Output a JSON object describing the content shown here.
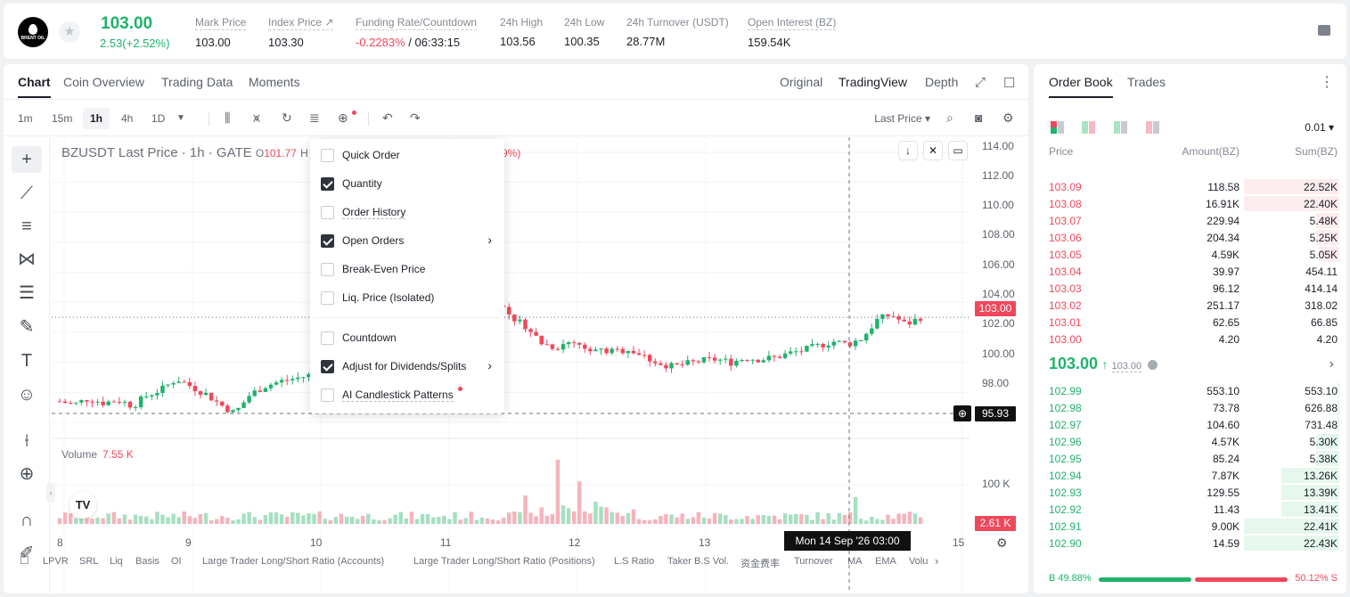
{
  "header": {
    "logo_text": "BRENT OIL",
    "price": "103.00",
    "change": "2.53(+2.52%)",
    "stats": [
      {
        "label": "Mark Price",
        "value": "103.00"
      },
      {
        "label": "Index Price ↗",
        "value": "103.30"
      },
      {
        "label": "Funding Rate/Countdown",
        "value_neg": "-0.2283%",
        "value": " / 06:33:15"
      },
      {
        "label": "24h High",
        "value": "103.56"
      },
      {
        "label": "24h Low",
        "value": "100.35"
      },
      {
        "label": "24h Turnover (USDT)",
        "value": "28.77M"
      },
      {
        "label": "Open Interest (BZ)",
        "value": "159.54K"
      }
    ]
  },
  "chart_tabs": [
    "Chart",
    "Coin Overview",
    "Trading Data",
    "Moments"
  ],
  "view_tabs": [
    "Original",
    "TradingView",
    "Depth"
  ],
  "timeframes": [
    "1m",
    "15m",
    "1h",
    "4h",
    "1D"
  ],
  "last_price_select": "Last Price",
  "chart": {
    "title": "BZUSDT Last Price · 1h · GATE",
    "o_label": "O",
    "o_value": "101.77",
    "h_label": "H",
    "pct_fragment": "9%)",
    "volume_label": "Volume",
    "volume_value": "7.55 K",
    "y_labels": [
      "114.00",
      "112.00",
      "110.00",
      "108.00",
      "106.00",
      "104.00",
      "102.00",
      "100.00",
      "98.00"
    ],
    "vol_axis_label": "100 K",
    "last_badge": "103.00",
    "cross_badge": "95.93",
    "vol_badge": "2.61 K",
    "x_labels": [
      "8",
      "9",
      "10",
      "11",
      "12",
      "13",
      "15"
    ],
    "x_badge": "Mon 14 Sep '26   03:00"
  },
  "chart_data": {
    "type": "candlestick",
    "y_range": [
      96,
      115
    ],
    "x_labels": [
      "8",
      "9",
      "10",
      "11",
      "12",
      "13",
      "14",
      "15"
    ],
    "close_series": [
      97.4,
      97.2,
      97.6,
      97.3,
      97.5,
      97.1,
      97.8,
      98.2,
      98.9,
      98.4,
      97.9,
      97.2,
      96.6,
      97.8,
      98.4,
      98.7,
      98.9,
      99.1,
      99.6,
      99.4,
      99.9,
      100.1,
      100.4,
      100.2,
      100.6,
      101.5,
      103.2,
      104.8,
      104.3,
      105.8,
      104.1,
      103.0,
      102.4,
      101.3,
      101.0,
      101.4,
      101.1,
      100.8,
      100.7,
      100.9,
      100.4,
      100.0,
      99.7,
      99.9,
      100.1,
      100.2,
      100.0,
      100.3,
      100.2,
      100.3,
      100.6,
      100.8,
      101.1,
      101.4,
      101.2,
      101.6,
      102.8,
      103.2,
      102.5,
      103.0
    ],
    "volume_peak_k": 100
  },
  "menu": {
    "items": [
      {
        "label": "Quick Order",
        "checked": false,
        "arrow": false
      },
      {
        "label": "Quantity",
        "checked": true,
        "arrow": false
      },
      {
        "label": "Order History",
        "checked": false,
        "arrow": false
      },
      {
        "label": "Open Orders",
        "checked": true,
        "arrow": true
      },
      {
        "label": "Break-Even Price",
        "checked": false,
        "arrow": false
      },
      {
        "label": "Liq. Price (Isolated)",
        "checked": false,
        "arrow": false
      },
      {
        "label": "Countdown",
        "checked": false,
        "arrow": false
      },
      {
        "label": "Adjust for Dividends/Splits",
        "checked": true,
        "arrow": true
      },
      {
        "label": "AI Candlestick Patterns",
        "checked": false,
        "arrow": false
      }
    ]
  },
  "indicators": [
    "LPVR",
    "SRL",
    "Liq",
    "Basis",
    "OI",
    "Large Trader Long/Short Ratio (Accounts)",
    "Large Trader Long/Short Ratio (Positions)",
    "L.S Ratio",
    "Taker B.S Vol.",
    "资金费率",
    "Turnover",
    "MA",
    "EMA",
    "Volu"
  ],
  "orderbook": {
    "tabs": [
      "Order Book",
      "Trades"
    ],
    "precision": "0.01",
    "headers": {
      "price": "Price",
      "amount": "Amount(BZ)",
      "sum": "Sum(BZ)"
    },
    "asks": [
      {
        "price": "103.09",
        "amount": "118.58",
        "sum": "22.52K",
        "depth": 0.33
      },
      {
        "price": "103.08",
        "amount": "16.91K",
        "sum": "22.40K",
        "depth": 0.33
      },
      {
        "price": "103.07",
        "amount": "229.94",
        "sum": "5.48K",
        "depth": 0.08
      },
      {
        "price": "103.06",
        "amount": "204.34",
        "sum": "5.25K",
        "depth": 0.08
      },
      {
        "price": "103.05",
        "amount": "4.59K",
        "sum": "5.05K",
        "depth": 0.07
      },
      {
        "price": "103.04",
        "amount": "39.97",
        "sum": "454.11",
        "depth": 0
      },
      {
        "price": "103.03",
        "amount": "96.12",
        "sum": "414.14",
        "depth": 0
      },
      {
        "price": "103.02",
        "amount": "251.17",
        "sum": "318.02",
        "depth": 0
      },
      {
        "price": "103.01",
        "amount": "62.65",
        "sum": "66.85",
        "depth": 0
      },
      {
        "price": "103.00",
        "amount": "4.20",
        "sum": "4.20",
        "depth": 0
      }
    ],
    "mid_price": "103.00",
    "mid_arrow": "↑",
    "mid_mark": "103.00",
    "bids": [
      {
        "price": "102.99",
        "amount": "553.10",
        "sum": "553.10",
        "depth": 0.01
      },
      {
        "price": "102.98",
        "amount": "73.78",
        "sum": "626.88",
        "depth": 0.01
      },
      {
        "price": "102.97",
        "amount": "104.60",
        "sum": "731.48",
        "depth": 0.01
      },
      {
        "price": "102.96",
        "amount": "4.57K",
        "sum": "5.30K",
        "depth": 0.08
      },
      {
        "price": "102.95",
        "amount": "85.24",
        "sum": "5.38K",
        "depth": 0.08
      },
      {
        "price": "102.94",
        "amount": "7.87K",
        "sum": "13.26K",
        "depth": 0.2
      },
      {
        "price": "102.93",
        "amount": "129.55",
        "sum": "13.39K",
        "depth": 0.2
      },
      {
        "price": "102.92",
        "amount": "11.43",
        "sum": "13.41K",
        "depth": 0.2
      },
      {
        "price": "102.91",
        "amount": "9.00K",
        "sum": "22.41K",
        "depth": 0.33
      },
      {
        "price": "102.90",
        "amount": "14.59",
        "sum": "22.43K",
        "depth": 0.33
      }
    ],
    "buy_ratio": "B 49.88%",
    "sell_ratio": "50.12% S"
  },
  "colors": {
    "up": "#20b26c",
    "down": "#f0475b"
  }
}
